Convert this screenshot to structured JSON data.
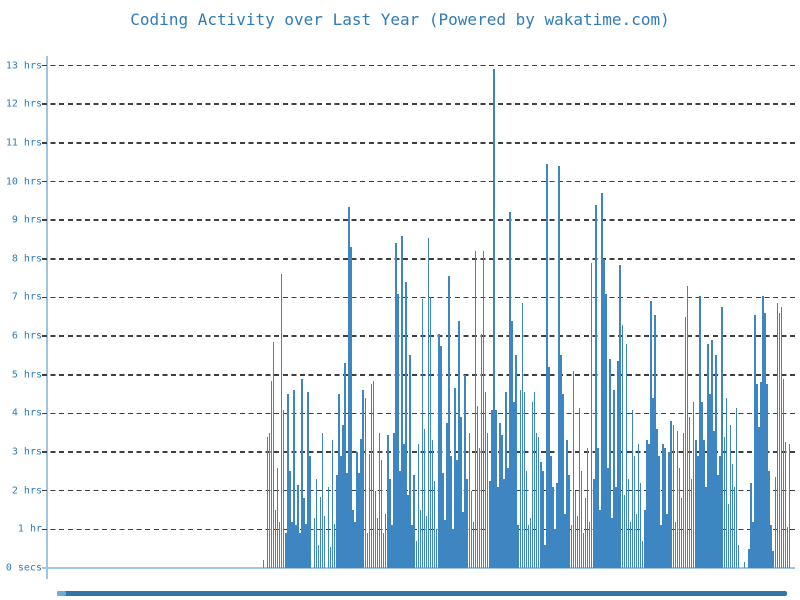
{
  "chart_data": {
    "type": "bar",
    "title": "Coding Activity over Last Year (Powered by wakatime.com)",
    "xlabel": "",
    "ylabel": "",
    "unit": "hours per day",
    "x_range": "last 365 days",
    "ylim": [
      0,
      13.5
    ],
    "grid": "horizontal dashed",
    "legend": "none",
    "yticks": [
      {
        "label": "0 secs",
        "hours": 0
      },
      {
        "label": "1 hr",
        "hours": 1
      },
      {
        "label": "2 hrs",
        "hours": 2
      },
      {
        "label": "3 hrs",
        "hours": 3
      },
      {
        "label": "4 hrs",
        "hours": 4
      },
      {
        "label": "5 hrs",
        "hours": 5
      },
      {
        "label": "6 hrs",
        "hours": 6
      },
      {
        "label": "7 hrs",
        "hours": 7
      },
      {
        "label": "8 hrs",
        "hours": 8
      },
      {
        "label": "9 hrs",
        "hours": 9
      },
      {
        "label": "10 hrs",
        "hours": 10
      },
      {
        "label": "11 hrs",
        "hours": 11
      },
      {
        "label": "12 hrs",
        "hours": 12
      },
      {
        "label": "13 hrs",
        "hours": 13
      }
    ],
    "values": [
      0,
      0,
      0,
      0,
      0,
      0,
      0,
      0,
      0,
      0,
      0,
      0,
      0,
      0,
      0,
      0,
      0,
      0,
      0,
      0,
      0,
      0,
      0,
      0,
      0,
      0,
      0,
      0,
      0,
      0,
      0,
      0,
      0,
      0,
      0,
      0,
      0,
      0,
      0,
      0,
      0,
      0,
      0,
      0,
      0,
      0,
      0,
      0,
      0,
      0,
      0,
      0,
      0,
      0,
      0,
      0,
      0,
      0,
      0,
      0,
      0,
      0,
      0,
      0,
      0,
      0,
      0,
      0,
      0,
      0,
      0,
      0,
      0,
      0,
      0,
      0,
      0,
      0,
      0,
      0,
      0,
      0,
      0,
      0,
      0,
      0,
      0,
      0,
      0,
      0,
      0,
      0,
      0,
      0,
      0,
      0,
      0,
      0,
      0,
      0,
      0,
      0,
      0,
      0,
      0,
      0,
      0.2,
      0,
      3.4,
      3.5,
      4.85,
      5.85,
      1.5,
      2.6,
      1.2,
      7.6,
      4.1,
      0.9,
      4.5,
      2.5,
      1.2,
      4.6,
      1.1,
      2.15,
      0.9,
      4.9,
      1.8,
      1.15,
      4.55,
      2.9,
      0,
      1.3,
      2.3,
      0.6,
      1.85,
      3.5,
      1.35,
      0,
      2.1,
      0.55,
      3.3,
      1.15,
      2.4,
      4.5,
      2.9,
      3.7,
      5.3,
      2.45,
      9.35,
      8.3,
      1.5,
      1.2,
      3.0,
      2.45,
      3.35,
      4.6,
      4.4,
      0.9,
      2.95,
      4.75,
      4.85,
      2.0,
      1.3,
      3.5,
      2.8,
      0.9,
      1.4,
      3.45,
      2.3,
      1.1,
      3.5,
      8.4,
      7.1,
      2.5,
      8.6,
      3.2,
      7.4,
      1.9,
      5.5,
      1.1,
      2.4,
      0.7,
      3.2,
      1.5,
      6.95,
      3.6,
      1.35,
      8.55,
      7.0,
      3.3,
      2.25,
      1.0,
      6.05,
      5.75,
      2.45,
      1.25,
      3.75,
      7.55,
      2.9,
      1.0,
      4.65,
      2.8,
      6.4,
      3.9,
      1.45,
      5.0,
      2.3,
      3.5,
      2.0,
      1.2,
      8.2,
      4.2,
      3.1,
      6.05,
      8.2,
      4.55,
      3.5,
      2.25,
      4.1,
      12.9,
      4.1,
      2.1,
      3.75,
      3.45,
      2.3,
      4.55,
      2.6,
      9.2,
      6.4,
      4.3,
      5.5,
      1.1,
      4.6,
      6.85,
      4.55,
      2.5,
      1.1,
      1.3,
      4.3,
      4.55,
      3.5,
      3.4,
      2.75,
      2.5,
      0.6,
      10.45,
      5.2,
      2.9,
      2.1,
      1.0,
      2.2,
      10.4,
      5.5,
      4.5,
      1.4,
      3.3,
      2.4,
      1.1,
      5.1,
      2.0,
      1.35,
      4.15,
      2.5,
      0.9,
      1.8,
      3.1,
      1.2,
      7.9,
      2.3,
      9.4,
      3.1,
      1.5,
      9.7,
      8.0,
      7.1,
      2.6,
      5.4,
      1.3,
      4.6,
      2.1,
      5.35,
      7.85,
      6.3,
      1.9,
      5.8,
      2.3,
      1.2,
      4.1,
      2.9,
      1.4,
      3.2,
      2.2,
      0.7,
      1.5,
      3.3,
      3.2,
      6.9,
      4.4,
      6.55,
      3.6,
      2.9,
      1.1,
      3.2,
      3.1,
      1.4,
      3.0,
      3.8,
      3.7,
      1.2,
      3.55,
      2.6,
      1.8,
      3.5,
      6.5,
      7.3,
      3.9,
      2.3,
      4.3,
      3.3,
      2.9,
      7.05,
      4.3,
      3.3,
      2.1,
      5.8,
      4.5,
      5.9,
      3.55,
      5.5,
      2.4,
      2.9,
      6.75,
      3.4,
      4.4,
      1.65,
      3.7,
      2.7,
      2.1,
      4.15,
      0.6,
      0,
      0,
      0.15,
      0,
      0.5,
      2.2,
      1.2,
      6.55,
      4.75,
      3.65,
      4.8,
      7.05,
      6.6,
      4.75,
      2.5,
      1.1,
      0.45,
      2.35,
      6.85,
      6.6,
      6.75,
      4.9,
      3.25,
      1.05,
      3.2
    ]
  },
  "colors": {
    "bar": "#3e86c2",
    "axis": "#9ec6e0",
    "label": "#2e7cb8",
    "title": "#2e7cb8",
    "grid": "#3f3f3f",
    "scrollbar": "#3174a9",
    "scrollbar_cap": "#74a9d0"
  }
}
